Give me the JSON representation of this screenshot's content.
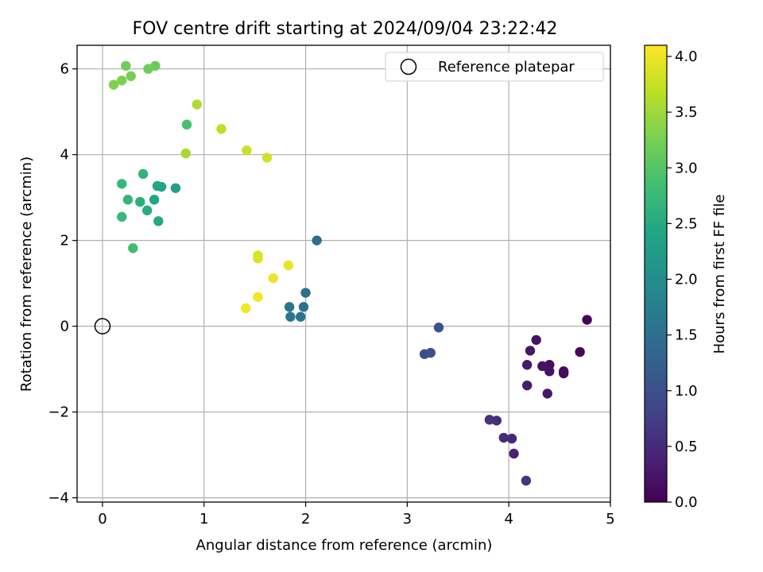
{
  "chart_data": {
    "type": "scatter",
    "title": "FOV centre drift starting at 2024/09/04 23:22:42",
    "xlabel": "Angular distance from reference (arcmin)",
    "ylabel": "Rotation from reference (arcmin)",
    "xlim": [
      -0.25,
      5.0
    ],
    "ylim": [
      -4.1,
      6.55
    ],
    "xticks": [
      0,
      1,
      2,
      3,
      4,
      5
    ],
    "xtick_labels": [
      "0",
      "1",
      "2",
      "3",
      "4",
      "5"
    ],
    "yticks": [
      -4,
      -2,
      0,
      2,
      4,
      6
    ],
    "ytick_labels": [
      "−4",
      "−2",
      "0",
      "2",
      "4",
      "6"
    ],
    "grid": true,
    "colormap": "viridis",
    "colorbar": {
      "label": "Hours from first FF file",
      "range": [
        0.0,
        4.1
      ],
      "ticks": [
        0.0,
        0.5,
        1.0,
        1.5,
        2.0,
        2.5,
        3.0,
        3.5,
        4.0
      ],
      "tick_labels": [
        "0.0",
        "0.5",
        "1.0",
        "1.5",
        "2.0",
        "2.5",
        "3.0",
        "3.5",
        "4.0"
      ]
    },
    "legend": {
      "placement": "top-right",
      "entries": [
        {
          "label": "Reference platepar",
          "marker": "open-circle",
          "x": 0,
          "y": 0
        }
      ]
    },
    "series": [
      {
        "points": [
          {
            "x": 4.77,
            "y": 0.15,
            "c": 0.05
          },
          {
            "x": 4.7,
            "y": -0.6,
            "c": 0.08
          },
          {
            "x": 4.54,
            "y": -1.05,
            "c": 0.1
          },
          {
            "x": 4.54,
            "y": -1.1,
            "c": 0.12
          },
          {
            "x": 4.4,
            "y": -0.9,
            "c": 0.15
          },
          {
            "x": 4.4,
            "y": -1.05,
            "c": 0.17
          },
          {
            "x": 4.33,
            "y": -0.93,
            "c": 0.2
          },
          {
            "x": 4.27,
            "y": -0.32,
            "c": 0.22
          },
          {
            "x": 4.38,
            "y": -1.57,
            "c": 0.25
          },
          {
            "x": 4.21,
            "y": -0.57,
            "c": 0.27
          },
          {
            "x": 4.18,
            "y": -0.9,
            "c": 0.3
          },
          {
            "x": 4.18,
            "y": -1.38,
            "c": 0.32
          },
          {
            "x": 4.05,
            "y": -2.97,
            "c": 0.4
          },
          {
            "x": 4.03,
            "y": -2.62,
            "c": 0.45
          },
          {
            "x": 3.95,
            "y": -2.6,
            "c": 0.5
          },
          {
            "x": 3.88,
            "y": -2.2,
            "c": 0.55
          },
          {
            "x": 3.81,
            "y": -2.18,
            "c": 0.6
          },
          {
            "x": 4.17,
            "y": -3.6,
            "c": 0.65
          },
          {
            "x": 3.17,
            "y": -0.65,
            "c": 0.95
          },
          {
            "x": 3.23,
            "y": -0.62,
            "c": 1.0
          },
          {
            "x": 3.31,
            "y": -0.03,
            "c": 1.05
          },
          {
            "x": 2.11,
            "y": 2.0,
            "c": 1.45
          },
          {
            "x": 2.0,
            "y": 0.78,
            "c": 1.5
          },
          {
            "x": 1.98,
            "y": 0.45,
            "c": 1.53
          },
          {
            "x": 1.95,
            "y": 0.22,
            "c": 1.55
          },
          {
            "x": 1.84,
            "y": 0.45,
            "c": 1.58
          },
          {
            "x": 1.85,
            "y": 0.22,
            "c": 1.6
          },
          {
            "x": 0.72,
            "y": 3.22,
            "c": 2.3
          },
          {
            "x": 0.58,
            "y": 3.25,
            "c": 2.35
          },
          {
            "x": 0.54,
            "y": 3.27,
            "c": 2.4
          },
          {
            "x": 0.51,
            "y": 2.95,
            "c": 2.45
          },
          {
            "x": 0.55,
            "y": 2.45,
            "c": 2.5
          },
          {
            "x": 0.44,
            "y": 2.7,
            "c": 2.55
          },
          {
            "x": 0.37,
            "y": 2.9,
            "c": 2.6
          },
          {
            "x": 0.4,
            "y": 3.55,
            "c": 2.65
          },
          {
            "x": 0.25,
            "y": 2.95,
            "c": 2.7
          },
          {
            "x": 0.19,
            "y": 3.32,
            "c": 2.72
          },
          {
            "x": 0.19,
            "y": 2.55,
            "c": 2.75
          },
          {
            "x": 0.3,
            "y": 1.82,
            "c": 2.8
          },
          {
            "x": 0.83,
            "y": 4.7,
            "c": 2.9
          },
          {
            "x": 0.52,
            "y": 6.07,
            "c": 3.15
          },
          {
            "x": 0.45,
            "y": 6.0,
            "c": 3.18
          },
          {
            "x": 0.23,
            "y": 6.07,
            "c": 3.22
          },
          {
            "x": 0.28,
            "y": 5.83,
            "c": 3.25
          },
          {
            "x": 0.19,
            "y": 5.73,
            "c": 3.28
          },
          {
            "x": 0.11,
            "y": 5.63,
            "c": 3.3
          },
          {
            "x": 0.82,
            "y": 4.03,
            "c": 3.55
          },
          {
            "x": 0.93,
            "y": 5.17,
            "c": 3.6
          },
          {
            "x": 1.17,
            "y": 4.6,
            "c": 3.7
          },
          {
            "x": 1.42,
            "y": 4.1,
            "c": 3.78
          },
          {
            "x": 1.62,
            "y": 3.93,
            "c": 3.82
          },
          {
            "x": 1.53,
            "y": 1.65,
            "c": 3.88
          },
          {
            "x": 1.53,
            "y": 1.58,
            "c": 3.9
          },
          {
            "x": 1.83,
            "y": 1.42,
            "c": 3.95
          },
          {
            "x": 1.68,
            "y": 1.12,
            "c": 4.0
          },
          {
            "x": 1.53,
            "y": 0.68,
            "c": 4.03
          },
          {
            "x": 1.41,
            "y": 0.42,
            "c": 4.05
          }
        ]
      }
    ]
  }
}
